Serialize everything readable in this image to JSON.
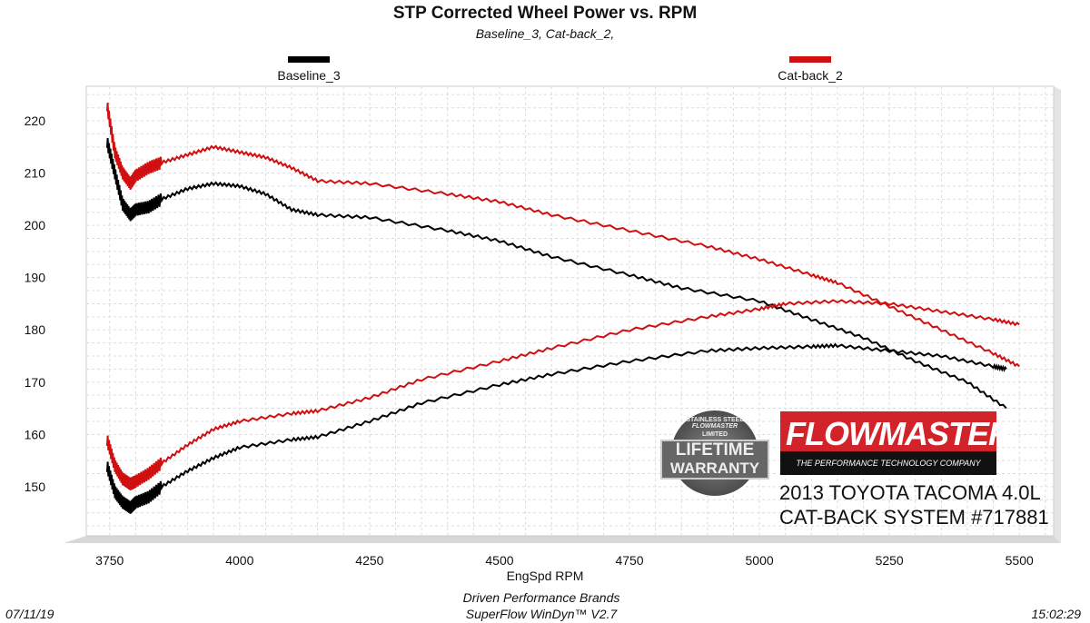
{
  "chart_data": {
    "type": "line",
    "title": "STP Corrected Wheel Power vs. RPM",
    "subtitle": "Baseline_3, Cat-back_2,",
    "xlabel": "EngSpd  RPM",
    "ylabel": "",
    "xlim": [
      3705,
      5566
    ],
    "ylim": [
      140.6,
      226.6
    ],
    "x_ticks": [
      3750,
      4000,
      4250,
      4500,
      4750,
      5000,
      5250,
      5500
    ],
    "y_ticks": [
      150,
      160,
      170,
      180,
      190,
      200,
      210,
      220
    ],
    "grid": true,
    "legend_placement": "top",
    "legend": [
      {
        "name": "Baseline_3",
        "color": "#000000"
      },
      {
        "name": "Cat-back_2",
        "color": "#d01010"
      }
    ],
    "series": [
      {
        "name": "Baseline_3",
        "color": "#000000",
        "x": [
          3745,
          3760,
          3775,
          3790,
          3800,
          3825,
          3850,
          3900,
          3950,
          4000,
          4050,
          4100,
          4150,
          4250,
          4400,
          4500,
          4600,
          4750,
          4850,
          5000,
          5100,
          5200,
          5300,
          5400,
          5475
        ],
        "values": [
          216,
          210,
          204,
          202,
          203,
          203.5,
          205,
          207,
          208,
          207.5,
          206,
          203,
          202,
          201.5,
          199,
          197,
          194,
          190.5,
          188,
          185.5,
          182,
          178.5,
          174,
          170,
          165
        ]
      },
      {
        "name": "Baseline_3",
        "color": "#000000",
        "x": [
          3745,
          3760,
          3775,
          3790,
          3800,
          3825,
          3850,
          3900,
          3950,
          4000,
          4100,
          4150,
          4250,
          4350,
          4500,
          4600,
          4750,
          4900,
          5000,
          5100,
          5150,
          5250,
          5350,
          5450,
          5475
        ],
        "values": [
          154,
          149,
          147,
          146,
          147,
          148,
          150,
          153,
          155.5,
          157.5,
          159,
          159.5,
          162.5,
          166,
          169.5,
          171.5,
          174,
          176,
          176.5,
          176.8,
          177,
          176,
          175,
          173,
          172.5
        ]
      },
      {
        "name": "Cat-back_2",
        "color": "#d01010",
        "x": [
          3745,
          3760,
          3775,
          3790,
          3800,
          3825,
          3850,
          3900,
          3950,
          4000,
          4050,
          4100,
          4150,
          4250,
          4400,
          4500,
          4600,
          4750,
          4900,
          5000,
          5100,
          5150,
          5250,
          5350,
          5450,
          5500
        ],
        "values": [
          223,
          214,
          210,
          208,
          209.5,
          211,
          212,
          213.5,
          215,
          214,
          213,
          211,
          208.5,
          208,
          206,
          204.5,
          202,
          199,
          196,
          193.5,
          190.5,
          189,
          184.5,
          180,
          175.5,
          173
        ]
      },
      {
        "name": "Cat-back_2",
        "color": "#d01010",
        "x": [
          3745,
          3760,
          3775,
          3790,
          3800,
          3825,
          3850,
          3900,
          3950,
          4000,
          4100,
          4150,
          4250,
          4350,
          4500,
          4600,
          4750,
          4900,
          5000,
          5050,
          5150,
          5250,
          5350,
          5450,
          5500
        ],
        "values": [
          159,
          154,
          151.5,
          150.5,
          151,
          152.5,
          154.5,
          158,
          161,
          162.5,
          164,
          164.5,
          167,
          170.5,
          174,
          176.5,
          180,
          182.5,
          184,
          185,
          185.5,
          185,
          183.5,
          182,
          181
        ]
      }
    ]
  },
  "footer": {
    "date": "07/11/19",
    "company": "Driven Performance Brands",
    "software": "SuperFlow WinDyn™ V2.7",
    "time": "15:02:29"
  },
  "annotation": {
    "line1": "2013 TOYOTA TACOMA 4.0L",
    "line2": "CAT-BACK SYSTEM #717881"
  },
  "logos": {
    "flowmaster": "FLOWMASTER",
    "flowmaster_tagline": "THE PERFORMANCE TECHNOLOGY COMPANY",
    "warranty_top": "STAINLESS STEEL",
    "warranty_brand": "FLOWMASTER",
    "warranty_limited": "LIMITED",
    "warranty_line1": "LIFETIME",
    "warranty_line2": "WARRANTY"
  }
}
